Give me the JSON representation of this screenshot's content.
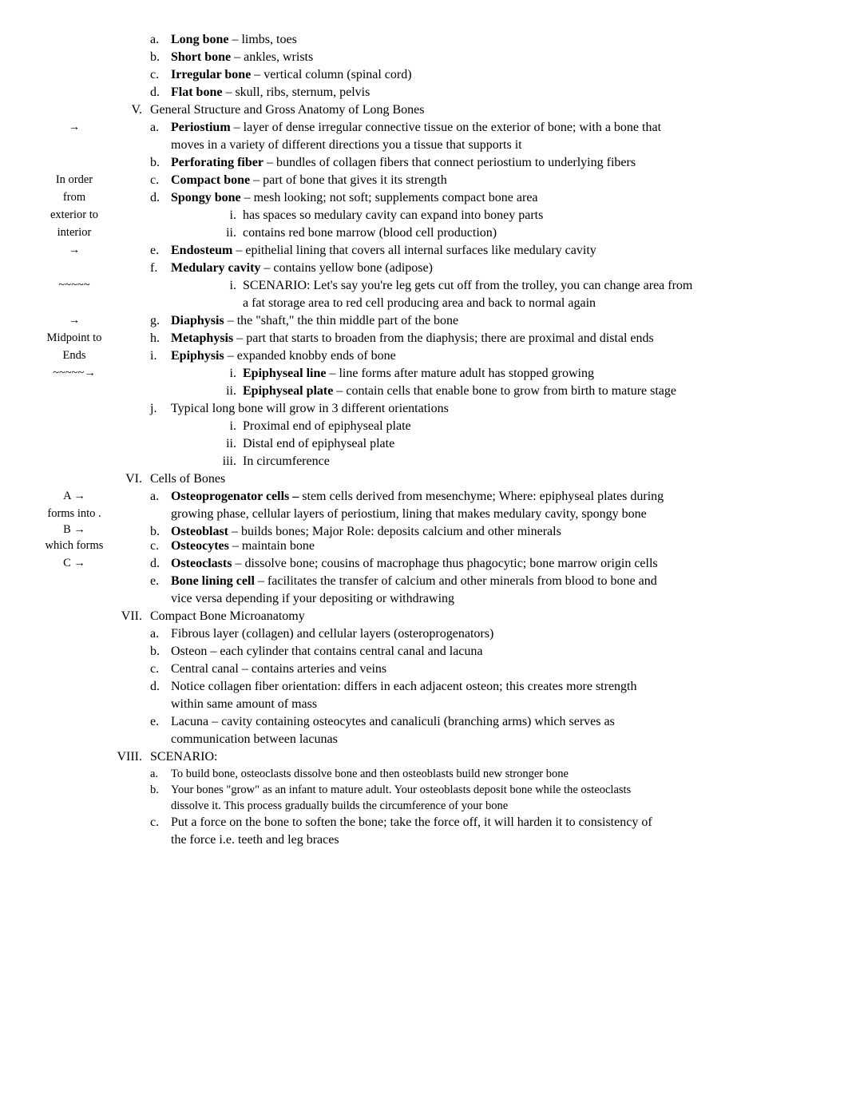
{
  "doc": {
    "IV": {
      "a": {
        "m": "a.",
        "term": "Long bone",
        "rest": " – limbs, toes"
      },
      "b": {
        "m": "b.",
        "term": "Short bone",
        "rest": " – ankles, wrists"
      },
      "c": {
        "m": "c.",
        "term": "Irregular bone",
        "rest": " – vertical column (spinal cord)"
      },
      "d": {
        "m": "d.",
        "term": "Flat bone",
        "rest": " – skull, ribs, sternum, pelvis"
      }
    },
    "V": {
      "roman": "V.",
      "title": "General Structure and Gross Anatomy of Long Bones",
      "a": {
        "m": "a.",
        "term": "Periostium",
        "rest": " – layer of dense irregular connective tissue on the exterior of bone; with a bone that",
        "cont": "moves in a variety of different directions you a tissue that supports it"
      },
      "b": {
        "m": "b.",
        "term": "Perforating fiber",
        "rest": " – bundles of collagen fibers that connect periostium to underlying fibers"
      },
      "c": {
        "m": "c.",
        "term": "Compact bone",
        "rest": " – part of bone that gives it its strength"
      },
      "d": {
        "m": "d.",
        "term": "Spongy bone",
        "rest": " – mesh looking; not soft; supplements compact bone area",
        "i": {
          "m": "i.",
          "t": "has spaces so medulary cavity can expand into boney parts"
        },
        "ii": {
          "m": "ii.",
          "t": "contains red bone marrow (blood cell production)"
        }
      },
      "e": {
        "m": "e.",
        "term": "Endosteum",
        "rest": " – epithelial lining that covers all  internal surfaces like medulary cavity"
      },
      "f": {
        "m": "f.",
        "term": "Medulary cavity",
        "rest": " – contains yellow bone (adipose)",
        "i": {
          "m": "i.",
          "t": "SCENARIO: Let's say you're leg gets cut off from the trolley, you can change area from",
          "cont": "a fat storage area to red cell producing area and back to normal again"
        }
      },
      "g": {
        "m": "g.",
        "term": "Diaphysis",
        "rest": " – the \"shaft,\" the thin middle part of the bone"
      },
      "h": {
        "m": "h.",
        "term": "Metaphysis",
        "rest": " – part that starts to broaden from the diaphysis; there are proximal and distal ends"
      },
      "i": {
        "m": "i.",
        "term": "Epiphysis",
        "rest": " – expanded knobby ends of bone",
        "i": {
          "m": "i.",
          "term": "Epiphyseal line",
          "rest": " – line forms after mature adult has stopped growing"
        },
        "ii": {
          "m": "ii.",
          "term": "Epiphyseal plate",
          "rest": " – contain cells that enable bone to grow from birth to mature stage"
        }
      },
      "j": {
        "m": "j.",
        "t": "Typical long bone will grow in 3 different orientations",
        "i": {
          "m": "i.",
          "t": "Proximal end of epiphyseal plate"
        },
        "ii": {
          "m": "ii.",
          "t": "Distal end of epiphyseal plate"
        },
        "iii": {
          "m": "iii.",
          "t": "In circumference"
        }
      }
    },
    "VI": {
      "roman": "VI.",
      "title": "Cells of Bones",
      "a": {
        "m": "a.",
        "term": "Osteoprogenator cells –",
        "rest": " stem cells derived from mesenchyme; Where: epiphyseal plates during",
        "cont": "growing phase, cellular layers of periostium, lining that makes medulary cavity, spongy bone"
      },
      "b": {
        "m": "b.",
        "term": "Osteoblast",
        "rest": " – builds bones; Major Role: deposits calcium and other minerals"
      },
      "c": {
        "m": "c.",
        "term": "Osteocytes",
        "rest": " – maintain bone"
      },
      "d": {
        "m": "d.",
        "term": "Osteoclasts",
        "rest": " – dissolve bone; cousins of macrophage thus phagocytic; bone marrow origin cells"
      },
      "e": {
        "m": "e.",
        "term": "Bone lining cell",
        "rest": " – facilitates the transfer of calcium and other minerals from blood to bone and",
        "cont": "vice versa depending if your depositing or withdrawing"
      }
    },
    "VII": {
      "roman": "VII.",
      "title": "Compact Bone Microanatomy",
      "a": {
        "m": "a.",
        "t": "Fibrous layer (collagen) and cellular layers (osteroprogenators)"
      },
      "b": {
        "m": "b.",
        "t": "Osteon – each cylinder that contains central canal and lacuna"
      },
      "c": {
        "m": "c.",
        "t": "Central canal – contains arteries and veins"
      },
      "d": {
        "m": "d.",
        "t": "Notice collagen fiber orientation: differs in each adjacent osteon; this creates more strength",
        "cont": "within same amount of mass"
      },
      "e": {
        "m": "e.",
        "t": "Lacuna – cavity containing osteocytes and canaliculi (branching arms) which serves as",
        "cont": "communication between lacunas"
      }
    },
    "VIII": {
      "roman": "VIII.",
      "title": "SCENARIO:",
      "a": {
        "m": "a.",
        "t": "To build bone, osteoclasts dissolve bone and then osteoblasts build new stronger bone"
      },
      "b": {
        "m": "b.",
        "t": "Your bones \"grow\" as an infant to mature adult. Your osteoblasts deposit bone while the osteoclasts",
        "cont": "dissolve it. This process gradually builds the circumference of your bone"
      },
      "c": {
        "m": "c.",
        "t": "Put a force on the bone to soften the bone; take the force off, it will harden it to consistency of",
        "cont": "the force i.e. teeth and leg braces"
      }
    }
  },
  "margin": {
    "arrow": "→",
    "in_order": "In order",
    "from": "from",
    "exterior": "exterior to",
    "interior": "interior",
    "tilde5": "~~~~~",
    "midpoint": "Midpoint to",
    "ends": "Ends",
    "tilde_arrow": "~~~~~→",
    "Aarrow": "A →",
    "forms": "forms into .",
    "Barrow": "B →",
    "which": "which forms",
    "Carrow": "C →"
  }
}
